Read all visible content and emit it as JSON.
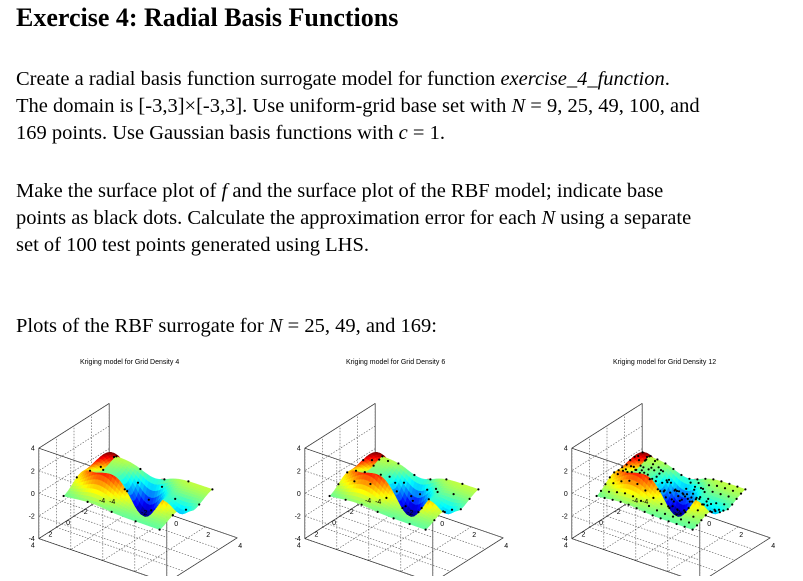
{
  "heading": "Exercise 4: Radial Basis Functions",
  "paragraph1": {
    "l1_a": "Create a radial basis function surrogate model for function ",
    "l1_fn": "exercise_4_function",
    "l1_b": ".",
    "l2_a": "The domain is [-3,3]×[-3,3]. Use uniform-grid base set with ",
    "l2_N": "N",
    "l2_b": " = 9, 25, 49, 100, and",
    "l3_a": "169 points. Use Gaussian basis functions with ",
    "l3_c": "c",
    "l3_b": " = 1."
  },
  "paragraph2": {
    "l1_a": "Make the surface plot of ",
    "l1_f": "f",
    "l1_b": " and the surface plot of the RBF model; indicate base",
    "l2_a": "points as black dots. Calculate the approximation error for each ",
    "l2_N": "N",
    "l2_b": " using a separate",
    "l3": "set of 100 test points generated using LHS."
  },
  "paragraph3": {
    "a": "Plots of the RBF surrogate for ",
    "N": "N",
    "b": " = 25, 49, and 169:"
  },
  "plots": [
    {
      "title": "Kriging model for Grid Density 4",
      "grid_density": 4
    },
    {
      "title": "Kriging model for Grid Density 6",
      "grid_density": 6
    },
    {
      "title": "Kriging model for Grid Density 12",
      "grid_density": 12
    }
  ],
  "z_ticks": [
    "4",
    "2",
    "0",
    "-2",
    "-4"
  ],
  "x_ticks": [
    "4",
    "2",
    "0",
    "-2",
    "-4"
  ],
  "y_ticks": [
    "4",
    "2",
    "0",
    "-2",
    "-4"
  ]
}
